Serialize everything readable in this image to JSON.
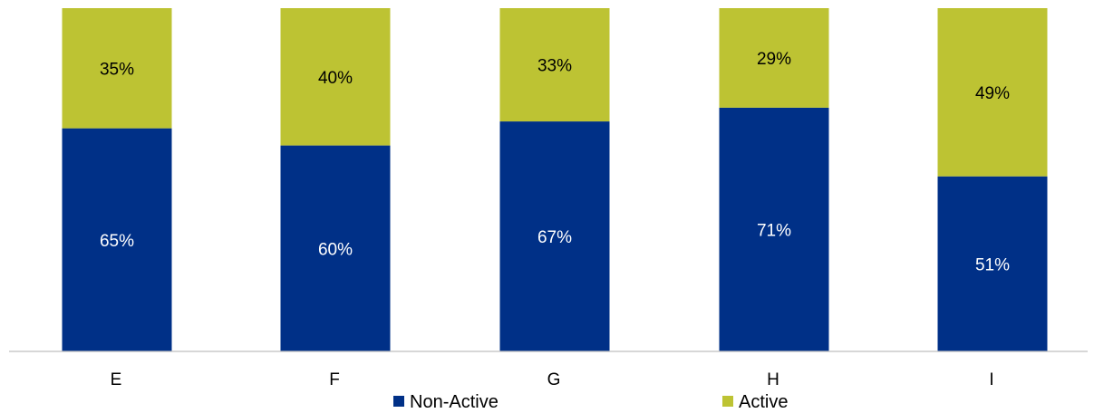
{
  "chart_data": {
    "type": "bar",
    "stacked": true,
    "percent": true,
    "categories": [
      "E",
      "F",
      "G",
      "H",
      "I"
    ],
    "series": [
      {
        "name": "Non-Active",
        "values": [
          65,
          60,
          67,
          71,
          51
        ],
        "labels": [
          "65%",
          "60%",
          "67%",
          "71%",
          "51%"
        ],
        "color": "#003087",
        "label_color": "#ffffff"
      },
      {
        "name": "Active",
        "values": [
          35,
          40,
          33,
          29,
          49
        ],
        "labels": [
          "35%",
          "40%",
          "33%",
          "29%",
          "49%"
        ],
        "color": "#BDC333",
        "label_color": "#000000"
      }
    ],
    "legend_position": "bottom",
    "grid": false,
    "axis_line_color": "#BFBFBF"
  }
}
